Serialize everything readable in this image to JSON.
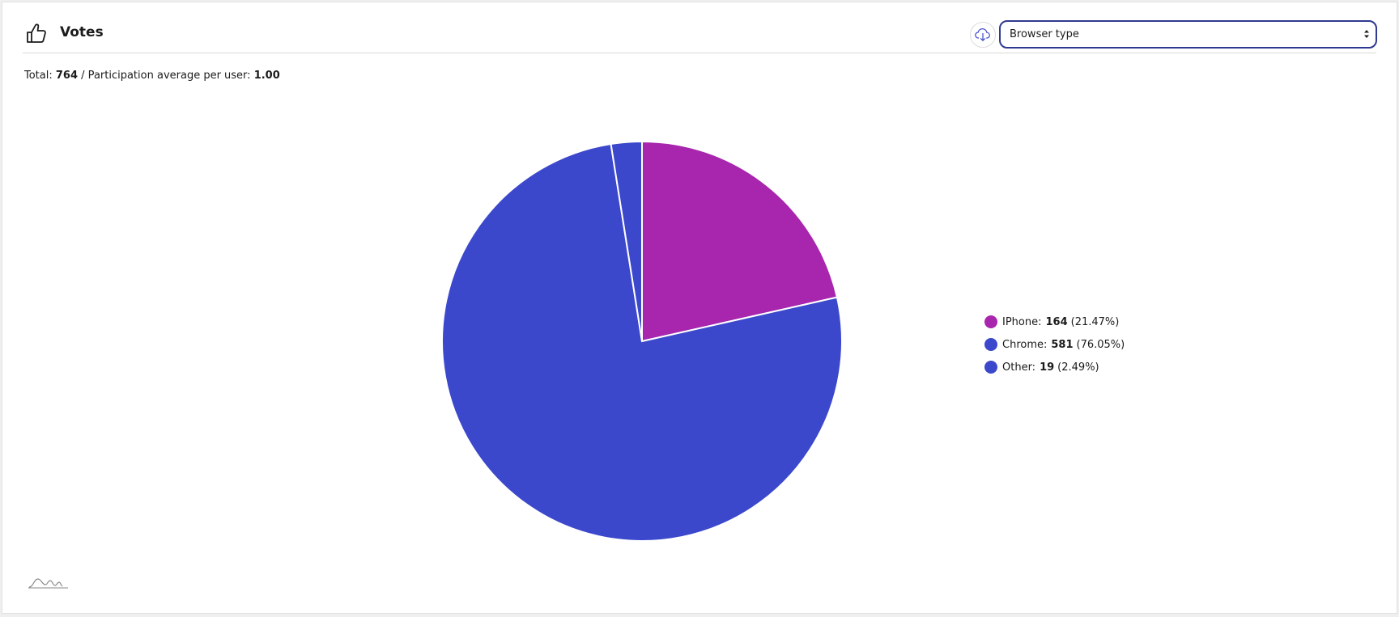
{
  "header": {
    "title": "Votes",
    "icon": "thumbs-up-icon",
    "download_icon": "cloud-download-icon"
  },
  "filter": {
    "selected": "Browser type"
  },
  "summary": {
    "total_label": "Total:",
    "total_value": "764",
    "separator": "/ Participation average per user:",
    "average_value": "1.00"
  },
  "colors": {
    "accent": "#2f3a8f",
    "iphone": "#a726ad",
    "chrome": "#3c48cc",
    "other": "#3c48cc"
  },
  "chart_data": {
    "type": "pie",
    "title": "",
    "slices": [
      {
        "label": "IPhone",
        "value": 164,
        "percent": "21.47%",
        "color": "#a726ad"
      },
      {
        "label": "Chrome",
        "value": 581,
        "percent": "76.05%",
        "color": "#3c48cc"
      },
      {
        "label": "Other",
        "value": 19,
        "percent": "2.49%",
        "color": "#3c48cc"
      }
    ],
    "legend": "right"
  },
  "footer": {
    "logo_icon": "brand-wave-logo"
  }
}
